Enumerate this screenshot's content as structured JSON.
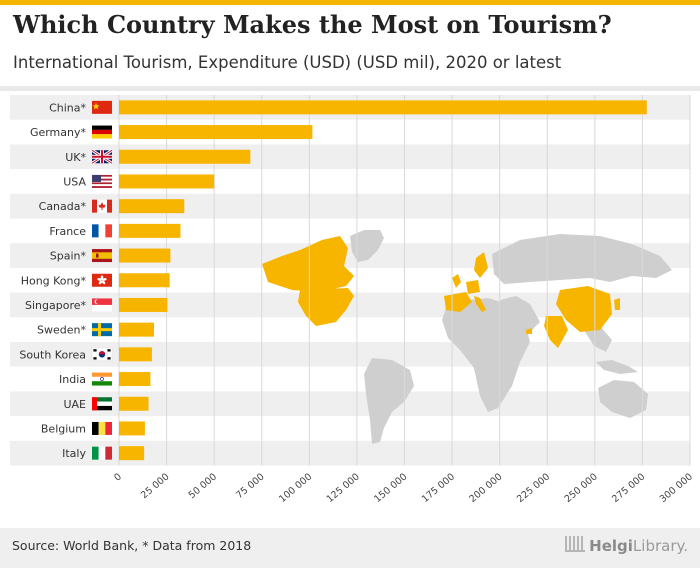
{
  "header": {
    "title": "Which Country Makes the Most on Tourism?",
    "subtitle": "International Tourism, Expenditure (USD) (USD mil), 2020 or latest"
  },
  "footer": {
    "source": "Source: World Bank, * Data from 2018",
    "brand_name": "Helgi",
    "brand_suffix": "Library."
  },
  "colors": {
    "bar": "#f7b500",
    "band": "#efefef",
    "grid": "#d9d9d9",
    "map_land": "#cfcfcf",
    "map_highlight": "#f7b500"
  },
  "chart_data": {
    "type": "bar",
    "orientation": "horizontal",
    "title": "Which Country Makes the Most on Tourism?",
    "subtitle": "International Tourism, Expenditure (USD) (USD mil), 2020 or latest",
    "xlabel": "",
    "ylabel": "",
    "xlim": [
      0,
      300000
    ],
    "xticks": [
      0,
      25000,
      50000,
      75000,
      100000,
      125000,
      150000,
      175000,
      200000,
      225000,
      250000,
      275000,
      300000
    ],
    "tick_labels": [
      "0",
      "25 000",
      "50 000",
      "75 000",
      "100 000",
      "125 000",
      "150 000",
      "175 000",
      "200 000",
      "225 000",
      "250 000",
      "275 000",
      "300 000"
    ],
    "grid": true,
    "categories": [
      "China*",
      "Germany*",
      "UK*",
      "USA",
      "Canada*",
      "France",
      "Spain*",
      "Hong Kong*",
      "Singapore*",
      "Sweden*",
      "South Korea",
      "India",
      "UAE",
      "Belgium",
      "Italy"
    ],
    "flags": [
      "china-flag",
      "germany-flag",
      "uk-flag",
      "usa-flag",
      "canada-flag",
      "france-flag",
      "spain-flag",
      "hong-kong-flag",
      "singapore-flag",
      "sweden-flag",
      "south-korea-flag",
      "india-flag",
      "uae-flag",
      "belgium-flag",
      "italy-flag"
    ],
    "values": [
      277300,
      101600,
      69000,
      50000,
      34300,
      32300,
      27000,
      26600,
      25400,
      18400,
      17300,
      16500,
      15500,
      13600,
      13200
    ]
  }
}
